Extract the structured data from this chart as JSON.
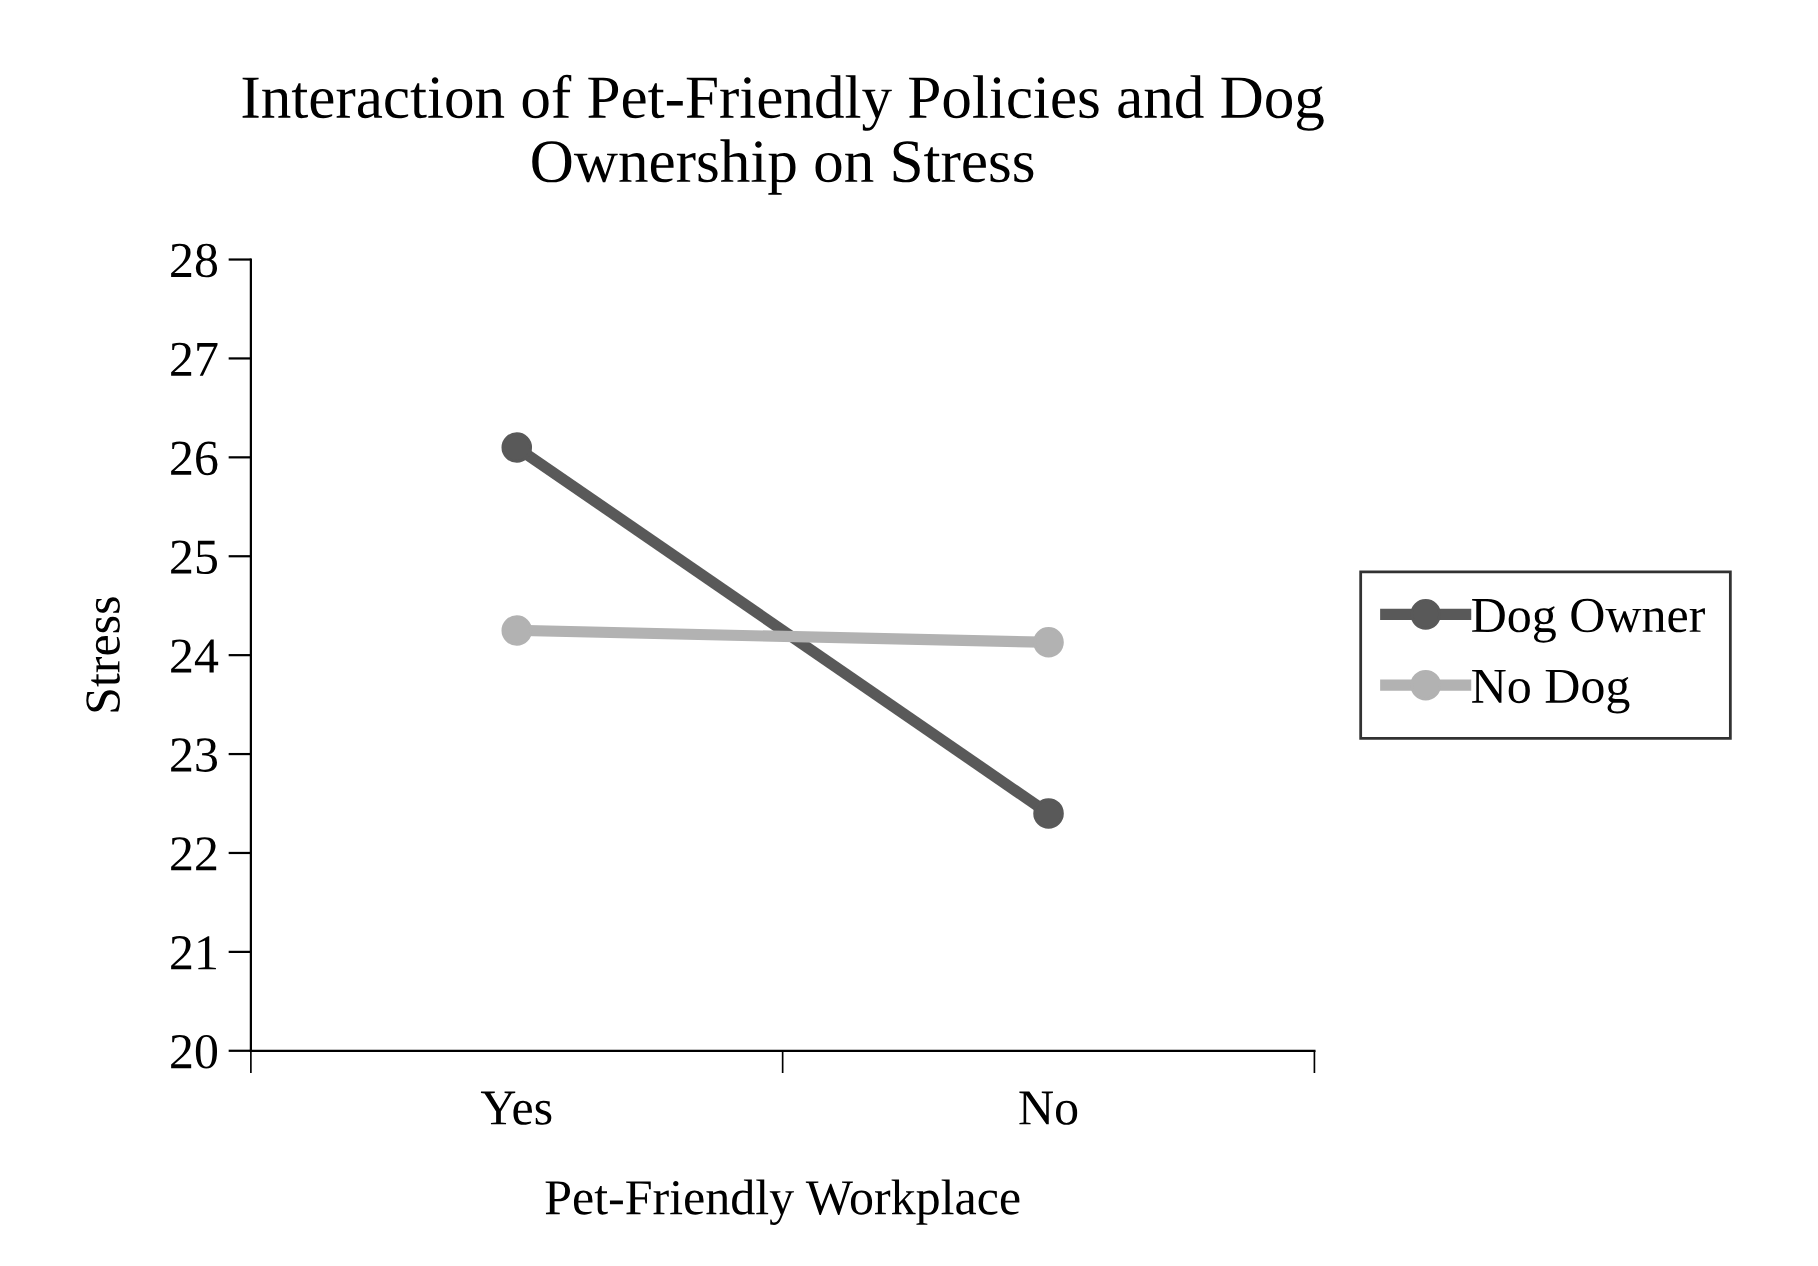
{
  "chart_data": {
    "type": "line",
    "title": "Interaction of Pet-Friendly Policies and Dog\nOwnership on Stress",
    "xlabel": "Pet-Friendly Workplace",
    "ylabel": "Stress",
    "categories": [
      "Yes",
      "No"
    ],
    "series": [
      {
        "name": "Dog Owner",
        "color": "#595959",
        "values": [
          26.1,
          22.4
        ]
      },
      {
        "name": "No Dog",
        "color": "#b2b2b2",
        "values": [
          24.25,
          24.13
        ]
      }
    ],
    "ylim": [
      20,
      28
    ],
    "yticks": [
      20,
      21,
      22,
      23,
      24,
      25,
      26,
      27,
      28
    ],
    "grid": false,
    "legend": "right",
    "marker": "circle",
    "line_style": "solid"
  }
}
